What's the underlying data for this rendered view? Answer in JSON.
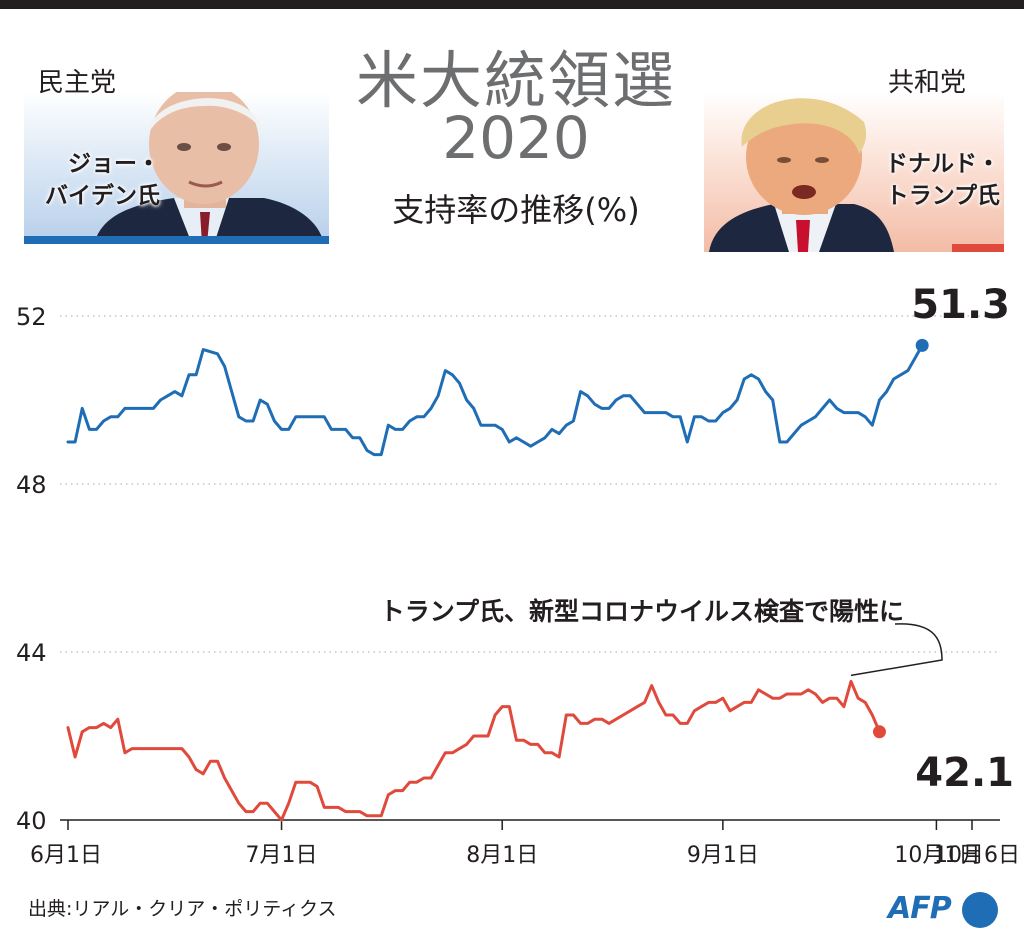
{
  "header": {
    "title_line1": "米大統領選",
    "title_line2": "2020",
    "subtitle": "支持率の推移(%)"
  },
  "candidates": {
    "democrat": {
      "party": "民主党",
      "name_line1": "ジョー・",
      "name_line2": "バイデン氏",
      "color": "#1f6db5"
    },
    "republican": {
      "party": "共和党",
      "name_line1": "ドナルド・",
      "name_line2": "トランプ氏",
      "color": "#e04a3c"
    }
  },
  "chart_data": {
    "type": "line",
    "title": "支持率の推移(%)",
    "xlabel": "",
    "ylabel": "",
    "ylim": [
      40,
      52
    ],
    "yticks": [
      40,
      44,
      48,
      52
    ],
    "xticks": [
      {
        "day": 0,
        "label": "6月1日"
      },
      {
        "day": 30,
        "label": "7月1日"
      },
      {
        "day": 61,
        "label": "8月1日"
      },
      {
        "day": 92,
        "label": "9月1日"
      },
      {
        "day": 122,
        "label": "10月1日"
      },
      {
        "day": 127,
        "label": "10月6日"
      }
    ],
    "grid": true,
    "series": [
      {
        "name": "バイデン氏",
        "color": "#1f6db5",
        "end_label": "51.3",
        "points": [
          [
            0,
            49.0
          ],
          [
            1,
            49.0
          ],
          [
            2,
            49.8
          ],
          [
            3,
            49.3
          ],
          [
            4,
            49.3
          ],
          [
            5,
            49.5
          ],
          [
            6,
            49.6
          ],
          [
            7,
            49.6
          ],
          [
            8,
            49.8
          ],
          [
            10,
            49.8
          ],
          [
            12,
            49.8
          ],
          [
            13,
            50.0
          ],
          [
            14,
            50.1
          ],
          [
            15,
            50.2
          ],
          [
            16,
            50.1
          ],
          [
            17,
            50.6
          ],
          [
            18,
            50.6
          ],
          [
            19,
            51.2
          ],
          [
            21,
            51.1
          ],
          [
            22,
            50.8
          ],
          [
            23,
            50.2
          ],
          [
            24,
            49.6
          ],
          [
            25,
            49.5
          ],
          [
            26,
            49.5
          ],
          [
            27,
            50.0
          ],
          [
            28,
            49.9
          ],
          [
            29,
            49.5
          ],
          [
            30,
            49.3
          ],
          [
            31,
            49.3
          ],
          [
            32,
            49.6
          ],
          [
            34,
            49.6
          ],
          [
            36,
            49.6
          ],
          [
            37,
            49.3
          ],
          [
            39,
            49.3
          ],
          [
            40,
            49.1
          ],
          [
            41,
            49.1
          ],
          [
            42,
            48.8
          ],
          [
            43,
            48.7
          ],
          [
            44,
            48.7
          ],
          [
            45,
            49.4
          ],
          [
            46,
            49.3
          ],
          [
            47,
            49.3
          ],
          [
            48,
            49.5
          ],
          [
            49,
            49.6
          ],
          [
            50,
            49.6
          ],
          [
            51,
            49.8
          ],
          [
            52,
            50.1
          ],
          [
            53,
            50.7
          ],
          [
            54,
            50.6
          ],
          [
            55,
            50.4
          ],
          [
            56,
            50.0
          ],
          [
            57,
            49.8
          ],
          [
            58,
            49.4
          ],
          [
            59,
            49.4
          ],
          [
            60,
            49.4
          ],
          [
            61,
            49.3
          ],
          [
            62,
            49.0
          ],
          [
            63,
            49.1
          ],
          [
            64,
            49.0
          ],
          [
            65,
            48.9
          ],
          [
            66,
            49.0
          ],
          [
            67,
            49.1
          ],
          [
            68,
            49.3
          ],
          [
            69,
            49.2
          ],
          [
            70,
            49.4
          ],
          [
            71,
            49.5
          ],
          [
            72,
            50.2
          ],
          [
            73,
            50.1
          ],
          [
            74,
            49.9
          ],
          [
            75,
            49.8
          ],
          [
            76,
            49.8
          ],
          [
            77,
            50.0
          ],
          [
            78,
            50.1
          ],
          [
            79,
            50.1
          ],
          [
            80,
            49.9
          ],
          [
            81,
            49.7
          ],
          [
            82,
            49.7
          ],
          [
            83,
            49.7
          ],
          [
            84,
            49.7
          ],
          [
            85,
            49.6
          ],
          [
            86,
            49.6
          ],
          [
            87,
            49.0
          ],
          [
            88,
            49.6
          ],
          [
            89,
            49.6
          ],
          [
            90,
            49.5
          ],
          [
            91,
            49.5
          ],
          [
            92,
            49.7
          ],
          [
            93,
            49.8
          ],
          [
            94,
            50.0
          ],
          [
            95,
            50.5
          ],
          [
            96,
            50.6
          ],
          [
            97,
            50.5
          ],
          [
            98,
            50.2
          ],
          [
            99,
            50.0
          ],
          [
            100,
            49.0
          ],
          [
            101,
            49.0
          ],
          [
            102,
            49.2
          ],
          [
            103,
            49.4
          ],
          [
            104,
            49.5
          ],
          [
            105,
            49.6
          ],
          [
            106,
            49.8
          ],
          [
            107,
            50.0
          ],
          [
            108,
            49.8
          ],
          [
            109,
            49.7
          ],
          [
            110,
            49.7
          ],
          [
            111,
            49.7
          ],
          [
            112,
            49.6
          ],
          [
            113,
            49.4
          ],
          [
            114,
            50.0
          ],
          [
            115,
            50.2
          ],
          [
            116,
            50.5
          ],
          [
            117,
            50.6
          ],
          [
            118,
            50.7
          ],
          [
            119,
            51.0
          ],
          [
            120,
            51.3
          ]
        ]
      },
      {
        "name": "トランプ氏",
        "color": "#e04a3c",
        "end_label": "42.1",
        "points": [
          [
            0,
            42.2
          ],
          [
            1,
            41.5
          ],
          [
            2,
            42.1
          ],
          [
            3,
            42.2
          ],
          [
            4,
            42.2
          ],
          [
            5,
            42.3
          ],
          [
            6,
            42.2
          ],
          [
            7,
            42.4
          ],
          [
            8,
            41.6
          ],
          [
            9,
            41.7
          ],
          [
            12,
            41.7
          ],
          [
            16,
            41.7
          ],
          [
            17,
            41.5
          ],
          [
            18,
            41.2
          ],
          [
            19,
            41.1
          ],
          [
            20,
            41.4
          ],
          [
            21,
            41.4
          ],
          [
            22,
            41.0
          ],
          [
            23,
            40.7
          ],
          [
            24,
            40.4
          ],
          [
            25,
            40.2
          ],
          [
            26,
            40.2
          ],
          [
            27,
            40.4
          ],
          [
            28,
            40.4
          ],
          [
            29,
            40.2
          ],
          [
            30,
            40.0
          ],
          [
            31,
            40.4
          ],
          [
            32,
            40.9
          ],
          [
            34,
            40.9
          ],
          [
            35,
            40.8
          ],
          [
            36,
            40.3
          ],
          [
            37,
            40.3
          ],
          [
            38,
            40.3
          ],
          [
            39,
            40.2
          ],
          [
            40,
            40.2
          ],
          [
            41,
            40.2
          ],
          [
            42,
            40.1
          ],
          [
            43,
            40.1
          ],
          [
            44,
            40.1
          ],
          [
            45,
            40.6
          ],
          [
            46,
            40.7
          ],
          [
            47,
            40.7
          ],
          [
            48,
            40.9
          ],
          [
            49,
            40.9
          ],
          [
            50,
            41.0
          ],
          [
            51,
            41.0
          ],
          [
            52,
            41.3
          ],
          [
            53,
            41.6
          ],
          [
            54,
            41.6
          ],
          [
            55,
            41.7
          ],
          [
            56,
            41.8
          ],
          [
            57,
            42.0
          ],
          [
            58,
            42.0
          ],
          [
            59,
            42.0
          ],
          [
            60,
            42.5
          ],
          [
            61,
            42.7
          ],
          [
            62,
            42.7
          ],
          [
            63,
            41.9
          ],
          [
            64,
            41.9
          ],
          [
            65,
            41.8
          ],
          [
            66,
            41.8
          ],
          [
            67,
            41.6
          ],
          [
            68,
            41.6
          ],
          [
            69,
            41.5
          ],
          [
            70,
            42.5
          ],
          [
            71,
            42.5
          ],
          [
            72,
            42.3
          ],
          [
            73,
            42.3
          ],
          [
            74,
            42.4
          ],
          [
            75,
            42.4
          ],
          [
            76,
            42.3
          ],
          [
            77,
            42.4
          ],
          [
            78,
            42.5
          ],
          [
            79,
            42.6
          ],
          [
            80,
            42.7
          ],
          [
            81,
            42.8
          ],
          [
            82,
            43.2
          ],
          [
            83,
            42.8
          ],
          [
            84,
            42.5
          ],
          [
            85,
            42.5
          ],
          [
            86,
            42.3
          ],
          [
            87,
            42.3
          ],
          [
            88,
            42.6
          ],
          [
            89,
            42.7
          ],
          [
            90,
            42.8
          ],
          [
            91,
            42.8
          ],
          [
            92,
            42.9
          ],
          [
            93,
            42.6
          ],
          [
            94,
            42.7
          ],
          [
            95,
            42.8
          ],
          [
            96,
            42.8
          ],
          [
            97,
            43.1
          ],
          [
            98,
            43.0
          ],
          [
            99,
            42.9
          ],
          [
            100,
            42.9
          ],
          [
            101,
            43.0
          ],
          [
            102,
            43.0
          ],
          [
            103,
            43.0
          ],
          [
            104,
            43.1
          ],
          [
            105,
            43.0
          ],
          [
            106,
            42.8
          ],
          [
            107,
            42.9
          ],
          [
            108,
            42.9
          ],
          [
            109,
            42.7
          ],
          [
            110,
            43.3
          ],
          [
            111,
            42.9
          ],
          [
            112,
            42.8
          ],
          [
            113,
            42.5
          ],
          [
            114,
            42.1
          ]
        ]
      }
    ],
    "annotation": "トランプ氏、新型コロナウイルス検査で陽性に",
    "annotation_day": 110
  },
  "footer": {
    "source": "出典:リアル・クリア・ポリティクス",
    "logo": "AFP"
  }
}
